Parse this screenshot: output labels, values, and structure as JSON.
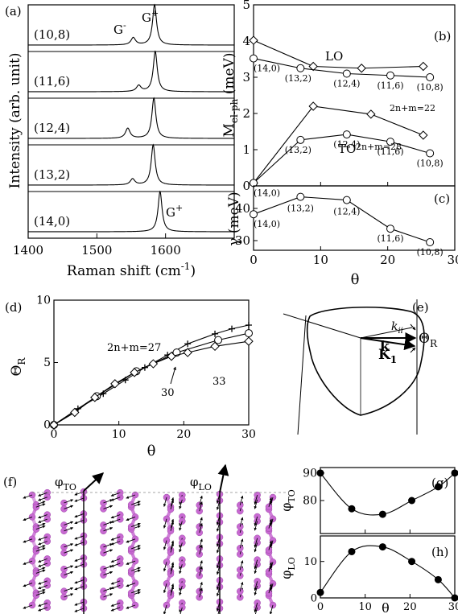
{
  "figure": {
    "panels": {
      "a": {
        "label": "(a)"
      },
      "b": {
        "label": "(b)"
      },
      "c": {
        "label": "(c)"
      },
      "d": {
        "label": "(d)"
      },
      "e": {
        "label": "(e)"
      },
      "f": {
        "label": "(f)"
      },
      "g": {
        "label": "(g)"
      },
      "h": {
        "label": "(h)"
      }
    }
  },
  "chart_data": [
    {
      "panel": "a",
      "type": "line",
      "xlabel": "Raman shift (cm-1)",
      "ylabel": "Intensity (arb. unit)",
      "xlim": [
        1400,
        1700
      ],
      "xticks": [
        1400,
        1500,
        1600
      ],
      "spectra": [
        {
          "name": "(10,8)",
          "peaks": [
            {
              "pos": 1553,
              "height": 0.18,
              "width": 4
            },
            {
              "pos": 1584,
              "height": 1.0,
              "width": 3.5
            }
          ]
        },
        {
          "name": "(11,6)",
          "peaks": [
            {
              "pos": 1561,
              "height": 0.15,
              "width": 4
            },
            {
              "pos": 1585,
              "height": 1.0,
              "width": 3.5
            }
          ]
        },
        {
          "name": "(12,4)",
          "peaks": [
            {
              "pos": 1545,
              "height": 0.25,
              "width": 4
            },
            {
              "pos": 1583,
              "height": 1.0,
              "width": 3.5
            }
          ]
        },
        {
          "name": "(13,2)",
          "peaks": [
            {
              "pos": 1552,
              "height": 0.15,
              "width": 4
            },
            {
              "pos": 1582,
              "height": 1.0,
              "width": 3.5
            }
          ]
        },
        {
          "name": "(14,0)",
          "peaks": [
            {
              "pos": 1592,
              "height": 1.0,
              "width": 3.5
            }
          ]
        }
      ],
      "annotations": [
        "G-",
        "G+",
        "G+"
      ]
    },
    {
      "panel": "b",
      "type": "line",
      "xlabel": "",
      "ylabel": "Mel-ph (meV)",
      "xlim": [
        0,
        30
      ],
      "ylim": [
        0,
        5
      ],
      "yticks": [
        0,
        1,
        2,
        3,
        4,
        5
      ],
      "series": [
        {
          "name": "LO",
          "marker": "diamond",
          "x": [
            0,
            8.9,
            16.1,
            25.3
          ],
          "y": [
            4.02,
            3.3,
            3.25,
            3.3
          ]
        },
        {
          "name": "",
          "marker": "circle",
          "x": [
            0,
            7.0,
            13.9,
            20.4,
            26.3
          ],
          "y": [
            3.52,
            3.25,
            3.1,
            3.05,
            3.0
          ]
        },
        {
          "name": "",
          "marker": "diamond",
          "x": [
            0,
            8.9,
            17.5,
            25.3
          ],
          "y": [
            0.08,
            2.2,
            1.98,
            1.4
          ]
        },
        {
          "name": "TO",
          "marker": "circle",
          "x": [
            0,
            7.0,
            13.9,
            20.4,
            26.3
          ],
          "y": [
            0.08,
            1.27,
            1.42,
            1.22,
            0.9
          ]
        }
      ],
      "point_labels": [
        "(14,0)",
        "(13,2)",
        "(12,4)",
        "(11,6)",
        "(10,8)",
        "(14,0)",
        "(13,2)",
        "(12,4)",
        "(11,6)",
        "(10,8)"
      ],
      "annotations": [
        "LO",
        "TO",
        "2n+m=22",
        "2n+m=28"
      ]
    },
    {
      "panel": "c",
      "type": "line",
      "xlabel": "θ",
      "ylabel": "γ (meV)",
      "xlim": [
        0,
        30
      ],
      "ylim": [
        27,
        47
      ],
      "xticks": [
        0,
        10,
        20,
        30
      ],
      "yticks": [
        30,
        40
      ],
      "series": [
        {
          "name": "",
          "marker": "circle",
          "x": [
            0,
            7.0,
            13.9,
            20.4,
            26.3
          ],
          "y": [
            38.2,
            43.6,
            42.6,
            33.7,
            29.5
          ]
        }
      ],
      "point_labels": [
        "(14,0)",
        "(13,2)",
        "(12,4)",
        "(11,6)",
        "(10,8)"
      ]
    },
    {
      "panel": "d",
      "type": "line",
      "xlabel": "θ",
      "ylabel": "ΘR",
      "xlim": [
        0,
        30
      ],
      "ylim": [
        0,
        10
      ],
      "xticks": [
        0,
        10,
        20,
        30
      ],
      "yticks": [
        0,
        5,
        10
      ],
      "series": [
        {
          "name": "2n+m=27",
          "marker": "plus",
          "x": [
            0,
            3.7,
            7.6,
            11.0,
            14.0,
            17.5,
            20.6,
            24.8,
            27.4,
            30
          ],
          "y": [
            0,
            1.3,
            2.5,
            3.6,
            4.6,
            5.6,
            6.5,
            7.3,
            7.7,
            8.0
          ]
        },
        {
          "name": "30",
          "marker": "circle",
          "x": [
            0,
            6.6,
            12.7,
            18.9,
            25.3,
            30
          ],
          "y": [
            0,
            2.3,
            4.3,
            5.8,
            6.8,
            7.35
          ]
        },
        {
          "name": "33",
          "marker": "diamond",
          "x": [
            0,
            3.2,
            6.3,
            9.4,
            12.4,
            15.3,
            18.1,
            20.6,
            24.8,
            30
          ],
          "y": [
            0,
            1.0,
            2.2,
            3.3,
            4.2,
            4.9,
            5.5,
            5.8,
            6.3,
            6.7
          ]
        }
      ],
      "annotations": [
        "2n+m=27",
        "30",
        "33"
      ]
    },
    {
      "panel": "g",
      "type": "line",
      "xlabel": "",
      "ylabel": "φTO",
      "xlim": [
        0,
        30
      ],
      "ylim": [
        68,
        92
      ],
      "yticks": [
        80,
        90
      ],
      "series": [
        {
          "name": "",
          "marker": "filled-circle",
          "x": [
            0,
            7.0,
            13.9,
            20.4,
            26.3,
            30
          ],
          "y": [
            90,
            77,
            75,
            80,
            85,
            90
          ]
        }
      ]
    },
    {
      "panel": "h",
      "type": "line",
      "xlabel": "θ",
      "ylabel": "φLO",
      "xlim": [
        0,
        30
      ],
      "ylim": [
        0,
        17
      ],
      "xticks": [
        0,
        10,
        20,
        30
      ],
      "yticks": [
        0,
        10
      ],
      "series": [
        {
          "name": "",
          "marker": "filled-circle",
          "x": [
            0,
            7.0,
            13.9,
            20.4,
            26.3,
            30
          ],
          "y": [
            1.5,
            12.7,
            14,
            10,
            5,
            0
          ]
        }
      ]
    }
  ],
  "diagram_e": {
    "labels": {
      "kii": "kii",
      "k": "k",
      "K1": "K1",
      "theta": "ΘR"
    }
  },
  "diagram_f": {
    "labels": {
      "phi_to": "φTO",
      "phi_lo": "φLO"
    },
    "colors": {
      "atom": "#c86ad2",
      "bond": "#d07fd9",
      "arrow": "#000000"
    }
  }
}
